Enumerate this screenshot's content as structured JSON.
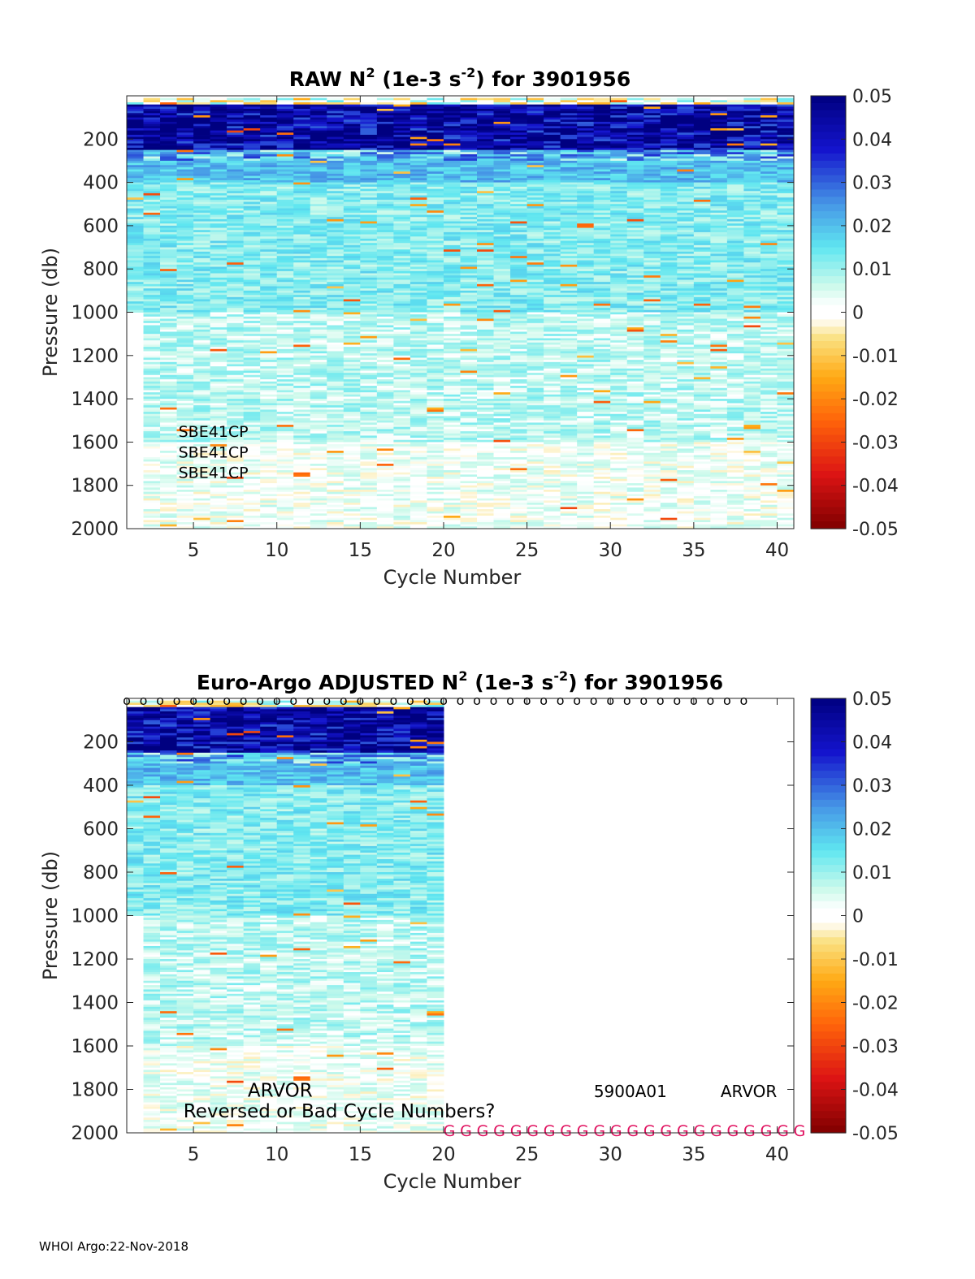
{
  "footer": "WHOI Argo:22-Nov-2018",
  "chart_data": [
    {
      "type": "heatmap",
      "title_main": "RAW N",
      "title_sup": "2",
      "title_units": " (1e-3 s",
      "title_units_sup": "-2",
      "title_end": ") for 3901956",
      "xlabel": "Cycle Number",
      "ylabel": "Pressure (db)",
      "xlim": [
        1,
        41
      ],
      "ylim": [
        0,
        2000
      ],
      "y_reversed": true,
      "xticks": [
        5,
        10,
        15,
        20,
        25,
        30,
        35,
        40
      ],
      "yticks": [
        200,
        400,
        600,
        800,
        1000,
        1200,
        1400,
        1600,
        1800,
        2000
      ],
      "cycles": [
        1,
        41
      ],
      "data_cycle_range": [
        1,
        41
      ],
      "data_pressure_range": [
        10,
        2000
      ],
      "colormap": "jet-like with white near zero",
      "colorbar": {
        "limits": [
          -0.05,
          0.05
        ],
        "ticks": [
          "0.05",
          "0.04",
          "0.03",
          "0.02",
          "0.01",
          "0",
          "-0.01",
          "-0.02",
          "-0.03",
          "-0.04",
          "-0.05"
        ]
      },
      "profile_summary": [
        {
          "pressure_range": [
            10,
            40
          ],
          "value": 0.0
        },
        {
          "pressure_range": [
            40,
            250
          ],
          "value": 0.045
        },
        {
          "pressure_range": [
            250,
            400
          ],
          "value": 0.02
        },
        {
          "pressure_range": [
            400,
            1000
          ],
          "value": 0.012
        },
        {
          "pressure_range": [
            1000,
            1600
          ],
          "value": 0.007
        },
        {
          "pressure_range": [
            1600,
            2000
          ],
          "value": 0.002
        }
      ],
      "annotations": [
        "SBE41CP",
        "SBE41CP",
        "SBE41CP"
      ]
    },
    {
      "type": "heatmap",
      "title_main": "Euro-Argo  ADJUSTED N",
      "title_sup": "2",
      "title_units": " (1e-3 s",
      "title_units_sup": "-2",
      "title_end": ") for 3901956",
      "xlabel": "Cycle Number",
      "ylabel": "Pressure (db)",
      "xlim": [
        1,
        41
      ],
      "ylim": [
        0,
        2000
      ],
      "y_reversed": true,
      "xticks": [
        5,
        10,
        15,
        20,
        25,
        30,
        35,
        40
      ],
      "yticks": [
        200,
        400,
        600,
        800,
        1000,
        1200,
        1400,
        1600,
        1800,
        2000
      ],
      "data_cycle_range": [
        1,
        20
      ],
      "data_pressure_range": [
        10,
        2000
      ],
      "colormap": "jet-like with white near zero",
      "colorbar": {
        "limits": [
          -0.05,
          0.05
        ],
        "ticks": [
          "0.05",
          "0.04",
          "0.03",
          "0.02",
          "0.01",
          "0",
          "-0.01",
          "-0.02",
          "-0.03",
          "-0.04",
          "-0.05"
        ]
      },
      "profile_summary": [
        {
          "pressure_range": [
            10,
            40
          ],
          "value": 0.0
        },
        {
          "pressure_range": [
            40,
            250
          ],
          "value": 0.045
        },
        {
          "pressure_range": [
            250,
            400
          ],
          "value": 0.02
        },
        {
          "pressure_range": [
            400,
            1000
          ],
          "value": 0.012
        },
        {
          "pressure_range": [
            1000,
            1600
          ],
          "value": 0.007
        },
        {
          "pressure_range": [
            1600,
            2000
          ],
          "value": 0.002
        }
      ],
      "top_markers": {
        "symbol": "o",
        "cycles_from": 1,
        "cycles_to": 38
      },
      "qc_flags": {
        "symbol": "G",
        "cycles_from": 20,
        "cycles_to": 41
      },
      "annotations": [
        "ARVOR",
        "Reversed or Bad Cycle Numbers?",
        "5900A01",
        "ARVOR"
      ]
    }
  ]
}
